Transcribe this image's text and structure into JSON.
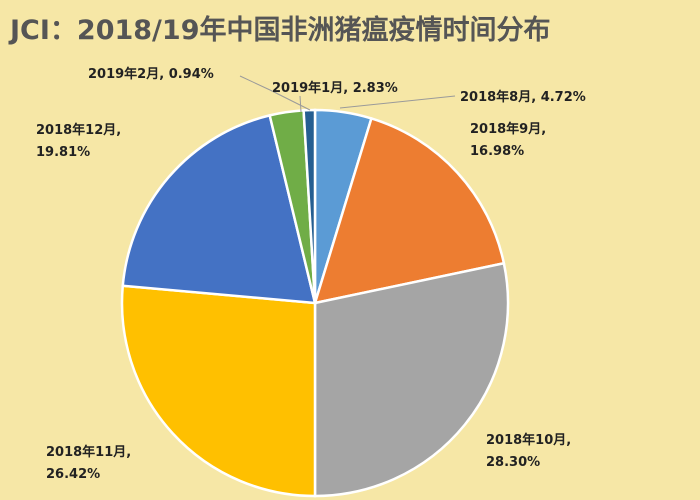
{
  "chart_data": {
    "type": "pie",
    "title": "JCI：2018/19年中国非洲猪瘟疫情时间分布",
    "slices": [
      {
        "label": "2018年8月",
        "value": 4.72,
        "value_label": "4.72%",
        "color": "#5b9bd5"
      },
      {
        "label": "2018年9月",
        "value": 16.98,
        "value_label": "16.98%",
        "color": "#ed7d31"
      },
      {
        "label": "2018年10月",
        "value": 28.3,
        "value_label": "28.30%",
        "color": "#a5a5a5"
      },
      {
        "label": "2018年11月",
        "value": 26.42,
        "value_label": "26.42%",
        "color": "#ffc000"
      },
      {
        "label": "2018年12月",
        "value": 19.81,
        "value_label": "19.81%",
        "color": "#4472c4"
      },
      {
        "label": "2019年1月",
        "value": 2.83,
        "value_label": "2.83%",
        "color": "#70ad47"
      },
      {
        "label": "2019年2月",
        "value": 0.94,
        "value_label": "0.94%",
        "color": "#255e91"
      }
    ],
    "start_angle_deg": 0,
    "direction": "clockwise",
    "legend": "none"
  }
}
